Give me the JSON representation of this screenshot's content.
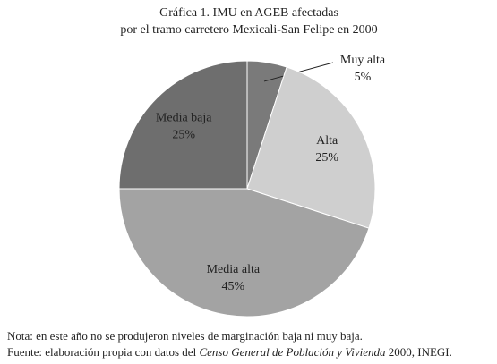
{
  "chart_data": {
    "type": "pie",
    "title": "Gráfica 1. IMU en AGEB afectadas",
    "subtitle": "por el tramo carretero Mexicali-San Felipe en 2000",
    "categories": [
      "Muy alta",
      "Alta",
      "Media alta",
      "Media baja"
    ],
    "values": [
      5,
      25,
      45,
      25
    ],
    "value_labels": [
      "5%",
      "25%",
      "45%",
      "25%"
    ],
    "colors": [
      "#7a7a7a",
      "#cfcfcf",
      "#a3a3a3",
      "#6e6e6e"
    ]
  },
  "notes": {
    "note": "Nota: en este año no se produjeron  niveles de marginación baja ni muy baja.",
    "source": {
      "before": "Fuente: elaboración propia con datos del ",
      "italic": "Censo General de Población y Vivienda",
      "after": " 2000, INEGI."
    }
  }
}
